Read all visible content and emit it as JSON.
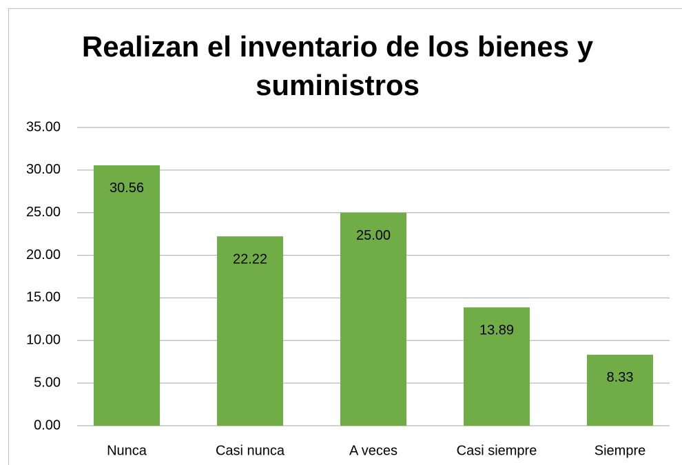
{
  "chart_data": {
    "type": "bar",
    "title": "Realizan el inventario de los bienes y suministros",
    "categories": [
      "Nunca",
      "Casi nunca",
      "A veces",
      "Casi siempre",
      "Siempre"
    ],
    "values": [
      30.56,
      22.22,
      25,
      13.89,
      8.33
    ],
    "value_labels": [
      "30.56",
      "22.22",
      "25.00",
      "13.89",
      "8.33"
    ],
    "color": "#70ad47",
    "ylim": [
      0,
      35
    ],
    "yticks": [
      {
        "value": 0,
        "label": "0.00"
      },
      {
        "value": 5,
        "label": "5.00"
      },
      {
        "value": 10,
        "label": "10.00"
      },
      {
        "value": 15,
        "label": "15.00"
      },
      {
        "value": 20,
        "label": "20.00"
      },
      {
        "value": 25,
        "label": "25.00"
      },
      {
        "value": 30,
        "label": "30.00"
      },
      {
        "value": 35,
        "label": "35.00"
      }
    ],
    "grid": true
  }
}
